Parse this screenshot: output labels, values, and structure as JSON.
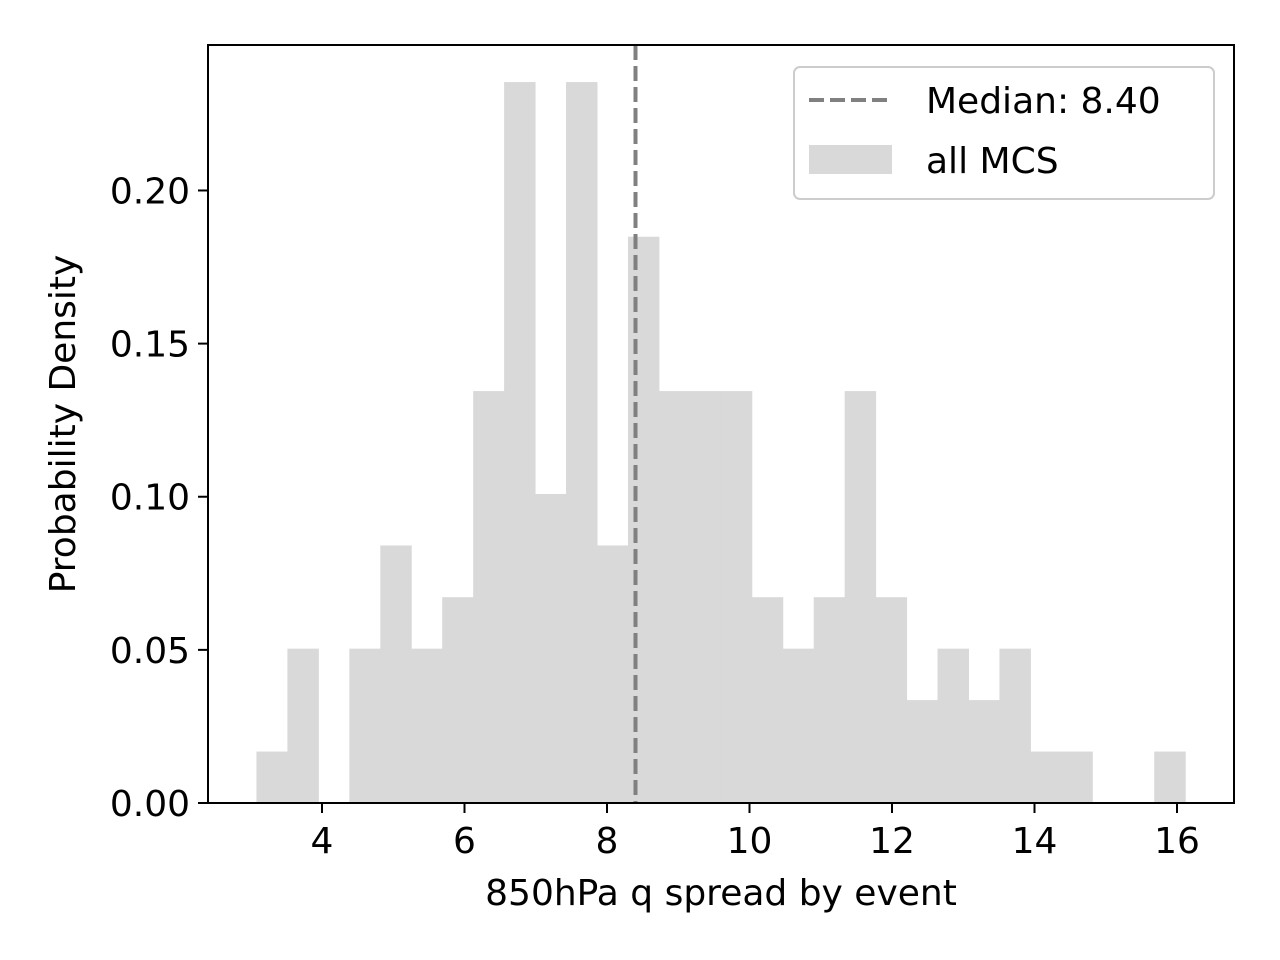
{
  "chart_data": {
    "type": "bar",
    "xlabel": "850hPa q spread by event",
    "ylabel": "Probability Density",
    "xlim": [
      2.4,
      16.8
    ],
    "ylim": [
      0,
      0.2475
    ],
    "xticks": [
      4,
      6,
      8,
      10,
      12,
      14,
      16
    ],
    "xtick_labels": [
      "4",
      "6",
      "8",
      "10",
      "12",
      "14",
      "16"
    ],
    "yticks": [
      0.0,
      0.05,
      0.1,
      0.15,
      0.2
    ],
    "ytick_labels": [
      "0.00",
      "0.05",
      "0.10",
      "0.15",
      "0.20"
    ],
    "bin_start": 3.08,
    "bin_width": 0.4345,
    "bin_values": [
      0.0168,
      0.0504,
      0.0,
      0.0504,
      0.0841,
      0.0504,
      0.0672,
      0.1345,
      0.2354,
      0.1009,
      0.2354,
      0.0841,
      0.1849,
      0.1345,
      0.1345,
      0.1345,
      0.0672,
      0.0504,
      0.0672,
      0.1345,
      0.0672,
      0.0336,
      0.0504,
      0.0336,
      0.0504,
      0.0168,
      0.0168,
      0.0,
      0.0,
      0.0168
    ],
    "bar_color": "#d9d9d9",
    "median": {
      "value": 8.4,
      "color": "#808080",
      "style": "dashed"
    },
    "legend": {
      "placement": "top-right",
      "items": [
        {
          "label": "Median: 8.40",
          "kind": "dashed-line"
        },
        {
          "label": "all MCS",
          "kind": "patch"
        }
      ]
    }
  }
}
